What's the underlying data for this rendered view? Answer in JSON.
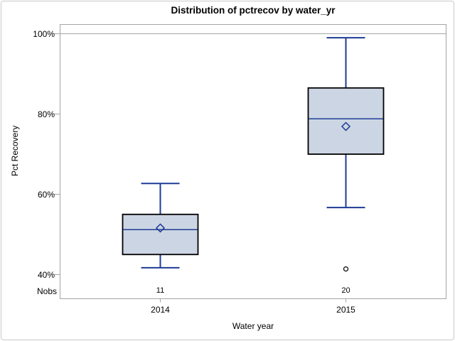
{
  "chart_data": {
    "type": "boxplot",
    "title": "Distribution of pctrecov by water_yr",
    "xlabel": "Water year",
    "ylabel": "Pct Recovery",
    "nobs_label": "Nobs",
    "y_axis": {
      "ticks": [
        100,
        80,
        60,
        40
      ],
      "tick_labels": [
        "100%",
        "80%",
        "60%",
        "40%"
      ],
      "range": [
        40,
        100
      ],
      "grid_values": [
        100
      ]
    },
    "categories": [
      "2014",
      "2015"
    ],
    "groups": [
      {
        "category": "2014",
        "nobs": "11",
        "whisker_low": 41.7,
        "q1": 45.0,
        "median": 51.2,
        "mean": 51.6,
        "q3": 55.0,
        "whisker_high": 62.7,
        "outliers": []
      },
      {
        "category": "2015",
        "nobs": "20",
        "whisker_low": 56.7,
        "q1": 70.0,
        "median": 78.8,
        "mean": 76.9,
        "q3": 86.5,
        "whisker_high": 99.0,
        "outliers": [
          41.4
        ]
      }
    ],
    "colors": {
      "box_fill": "#ccd5e3",
      "box_border": "#000000",
      "line": "#1e3c96",
      "frame": "#a4a4a4",
      "outlier": "#000000",
      "text": "#000000",
      "outer_border": "#c9c9c9"
    }
  }
}
